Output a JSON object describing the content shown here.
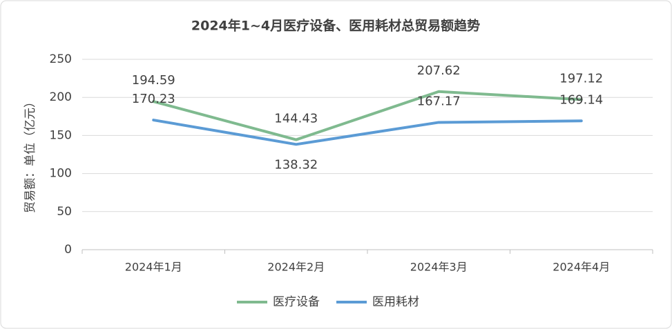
{
  "chart_data": {
    "type": "line",
    "title": "2024年1~4月医疗设备、医用耗材总贸易额趋势",
    "y_label": "贸易额：单位（亿元）",
    "categories": [
      "2024年1月",
      "2024年2月",
      "2024年3月",
      "2024年4月"
    ],
    "series": [
      {
        "name": "医疗设备",
        "color": "#7fba8f",
        "values": [
          194.59,
          144.43,
          207.62,
          197.12
        ]
      },
      {
        "name": "医用耗材",
        "color": "#5b9bd5",
        "values": [
          170.23,
          138.32,
          167.17,
          169.14
        ]
      }
    ],
    "ylim": [
      0,
      250
    ],
    "yticks": [
      0,
      50,
      100,
      150,
      200,
      250
    ],
    "grid": true
  }
}
